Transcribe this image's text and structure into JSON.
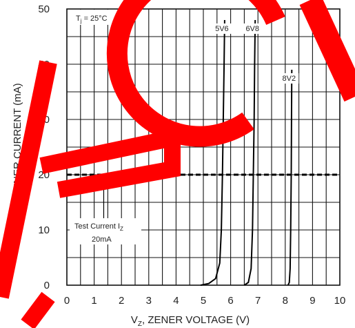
{
  "chart_data": {
    "type": "line",
    "xlabel": {
      "main": "V",
      "sub": "Z",
      "rest": ", ZENER VOLTAGE (V)"
    },
    "ylabel": {
      "main": "I",
      "sub": "Z",
      "rest": ", ZENER CURRENT (mA)"
    },
    "xlim": [
      0,
      10
    ],
    "ylim": [
      0,
      50
    ],
    "x_ticks": [
      "0",
      "1",
      "2",
      "3",
      "4",
      "5",
      "6",
      "7",
      "8",
      "9",
      "10"
    ],
    "y_ticks": [
      "0",
      "10",
      "20",
      "30",
      "40",
      "50"
    ],
    "grid": true,
    "temperature_label": {
      "main": "T",
      "sub": "j",
      "rest": " = 25°C"
    },
    "test_current": {
      "line_value": 20,
      "label_main": "Test Current I",
      "label_sub": "Z",
      "label_value": "20mA"
    },
    "series": [
      {
        "name": "5V6",
        "points": [
          [
            4.9,
            0
          ],
          [
            5.2,
            0.3
          ],
          [
            5.45,
            1.2
          ],
          [
            5.6,
            4
          ],
          [
            5.66,
            10
          ],
          [
            5.7,
            20
          ],
          [
            5.73,
            30
          ],
          [
            5.76,
            40
          ],
          [
            5.78,
            48
          ]
        ]
      },
      {
        "name": "6V8",
        "points": [
          [
            6.5,
            0
          ],
          [
            6.65,
            0.5
          ],
          [
            6.75,
            3
          ],
          [
            6.8,
            10
          ],
          [
            6.83,
            20
          ],
          [
            6.86,
            30
          ],
          [
            6.88,
            40
          ],
          [
            6.9,
            48
          ]
        ]
      },
      {
        "name": "8V2",
        "points": [
          [
            8.1,
            0
          ],
          [
            8.15,
            0.5
          ],
          [
            8.18,
            3
          ],
          [
            8.2,
            10
          ],
          [
            8.22,
            20
          ],
          [
            8.23,
            30
          ],
          [
            8.24,
            39
          ]
        ]
      }
    ]
  }
}
